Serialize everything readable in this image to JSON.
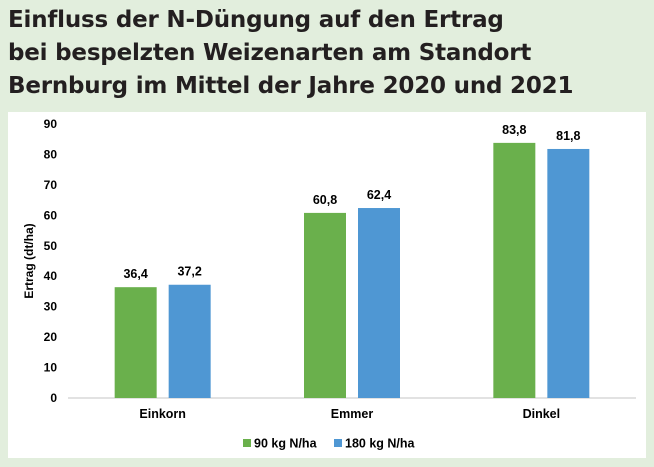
{
  "chart_data": {
    "type": "bar",
    "title": "Einfluss der N-Düngung auf den Ertrag bei bespelzten Weizenarten am Standort Bernburg im Mittel der Jahre 2020 und 2021",
    "title_lines": [
      "Einfluss der N-Düngung auf den Ertrag",
      "bei bespelzten Weizenarten am Standort",
      "Bernburg im Mittel der Jahre 2020 und 2021"
    ],
    "xlabel": "",
    "ylabel": "Ertrag (dt/ha)",
    "ylim": [
      0,
      90
    ],
    "yticks": [
      0,
      10,
      20,
      30,
      40,
      50,
      60,
      70,
      80,
      90
    ],
    "categories": [
      "Einkorn",
      "Emmer",
      "Dinkel"
    ],
    "series": [
      {
        "name": "90 kg N/ha",
        "color": "#6ab04c",
        "values": [
          36.4,
          60.8,
          83.8
        ],
        "labels": [
          "36,4",
          "60,8",
          "83,8"
        ]
      },
      {
        "name": "180 kg N/ha",
        "color": "#4f97d3",
        "values": [
          37.2,
          62.4,
          81.8
        ],
        "labels": [
          "37,2",
          "62,4",
          "81,8"
        ]
      }
    ],
    "grid": false,
    "legend": "bottom-center"
  }
}
